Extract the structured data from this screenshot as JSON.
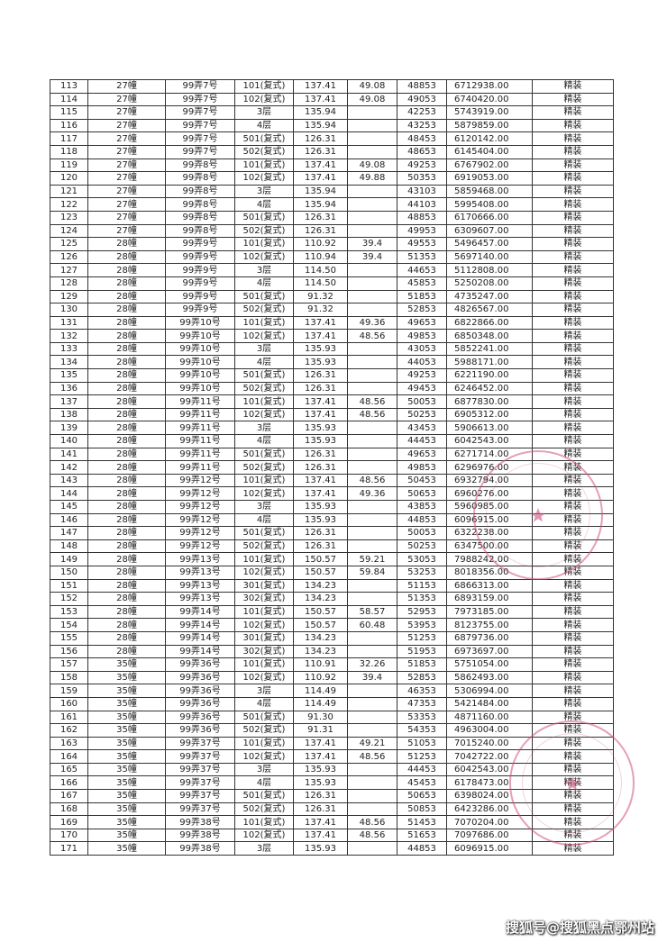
{
  "table": {
    "rows": [
      [
        "113",
        "27幢",
        "99弄7号",
        "101(复式)",
        "137.41",
        "49.08",
        "48853",
        "6712938.00",
        "精装"
      ],
      [
        "114",
        "27幢",
        "99弄7号",
        "102(复式)",
        "137.41",
        "49.08",
        "49053",
        "6740420.00",
        "精装"
      ],
      [
        "115",
        "27幢",
        "99弄7号",
        "3层",
        "135.94",
        "",
        "42253",
        "5743919.00",
        "精装"
      ],
      [
        "116",
        "27幢",
        "99弄7号",
        "4层",
        "135.94",
        "",
        "43253",
        "5879859.00",
        "精装"
      ],
      [
        "117",
        "27幢",
        "99弄7号",
        "501(复式)",
        "126.31",
        "",
        "48453",
        "6120142.00",
        "精装"
      ],
      [
        "118",
        "27幢",
        "99弄7号",
        "502(复式)",
        "126.31",
        "",
        "48653",
        "6145404.00",
        "精装"
      ],
      [
        "119",
        "27幢",
        "99弄8号",
        "101(复式)",
        "137.41",
        "49.08",
        "49253",
        "6767902.00",
        "精装"
      ],
      [
        "120",
        "27幢",
        "99弄8号",
        "102(复式)",
        "137.41",
        "49.88",
        "50353",
        "6919053.00",
        "精装"
      ],
      [
        "121",
        "27幢",
        "99弄8号",
        "3层",
        "135.94",
        "",
        "43103",
        "5859468.00",
        "精装"
      ],
      [
        "122",
        "27幢",
        "99弄8号",
        "4层",
        "135.94",
        "",
        "44103",
        "5995408.00",
        "精装"
      ],
      [
        "123",
        "27幢",
        "99弄8号",
        "501(复式)",
        "126.31",
        "",
        "48853",
        "6170666.00",
        "精装"
      ],
      [
        "124",
        "27幢",
        "99弄8号",
        "502(复式)",
        "126.31",
        "",
        "49953",
        "6309607.00",
        "精装"
      ],
      [
        "125",
        "28幢",
        "99弄9号",
        "101(复式)",
        "110.92",
        "39.4",
        "49553",
        "5496457.00",
        "精装"
      ],
      [
        "126",
        "28幢",
        "99弄9号",
        "102(复式)",
        "110.94",
        "39.4",
        "51353",
        "5697140.00",
        "精装"
      ],
      [
        "127",
        "28幢",
        "99弄9号",
        "3层",
        "114.50",
        "",
        "44653",
        "5112808.00",
        "精装"
      ],
      [
        "128",
        "28幢",
        "99弄9号",
        "4层",
        "114.50",
        "",
        "45853",
        "5250208.00",
        "精装"
      ],
      [
        "129",
        "28幢",
        "99弄9号",
        "501(复式)",
        "91.32",
        "",
        "51853",
        "4735247.00",
        "精装"
      ],
      [
        "130",
        "28幢",
        "99弄9号",
        "502(复式)",
        "91.32",
        "",
        "52853",
        "4826567.00",
        "精装"
      ],
      [
        "131",
        "28幢",
        "99弄10号",
        "101(复式)",
        "137.41",
        "49.36",
        "49653",
        "6822866.00",
        "精装"
      ],
      [
        "132",
        "28幢",
        "99弄10号",
        "102(复式)",
        "137.41",
        "48.56",
        "49853",
        "6850348.00",
        "精装"
      ],
      [
        "133",
        "28幢",
        "99弄10号",
        "3层",
        "135.93",
        "",
        "43053",
        "5852241.00",
        "精装"
      ],
      [
        "134",
        "28幢",
        "99弄10号",
        "4层",
        "135.93",
        "",
        "44053",
        "5988171.00",
        "精装"
      ],
      [
        "135",
        "28幢",
        "99弄10号",
        "501(复式)",
        "126.31",
        "",
        "49253",
        "6221190.00",
        "精装"
      ],
      [
        "136",
        "28幢",
        "99弄10号",
        "502(复式)",
        "126.31",
        "",
        "49453",
        "6246452.00",
        "精装"
      ],
      [
        "137",
        "28幢",
        "99弄11号",
        "101(复式)",
        "137.41",
        "48.56",
        "50053",
        "6877830.00",
        "精装"
      ],
      [
        "138",
        "28幢",
        "99弄11号",
        "102(复式)",
        "137.41",
        "48.56",
        "50253",
        "6905312.00",
        "精装"
      ],
      [
        "139",
        "28幢",
        "99弄11号",
        "3层",
        "135.93",
        "",
        "43453",
        "5906613.00",
        "精装"
      ],
      [
        "140",
        "28幢",
        "99弄11号",
        "4层",
        "135.93",
        "",
        "44453",
        "6042543.00",
        "精装"
      ],
      [
        "141",
        "28幢",
        "99弄11号",
        "501(复式)",
        "126.31",
        "",
        "49653",
        "6271714.00",
        "精装"
      ],
      [
        "142",
        "28幢",
        "99弄11号",
        "502(复式)",
        "126.31",
        "",
        "49853",
        "6296976.00",
        "精装"
      ],
      [
        "143",
        "28幢",
        "99弄12号",
        "101(复式)",
        "137.41",
        "48.56",
        "50453",
        "6932794.00",
        "精装"
      ],
      [
        "144",
        "28幢",
        "99弄12号",
        "102(复式)",
        "137.41",
        "49.36",
        "50653",
        "6960276.00",
        "精装"
      ],
      [
        "145",
        "28幢",
        "99弄12号",
        "3层",
        "135.93",
        "",
        "43853",
        "5960985.00",
        "精装"
      ],
      [
        "146",
        "28幢",
        "99弄12号",
        "4层",
        "135.93",
        "",
        "44853",
        "6096915.00",
        "精装"
      ],
      [
        "147",
        "28幢",
        "99弄12号",
        "501(复式)",
        "126.31",
        "",
        "50053",
        "6322238.00",
        "精装"
      ],
      [
        "148",
        "28幢",
        "99弄12号",
        "502(复式)",
        "126.31",
        "",
        "50253",
        "6347500.00",
        "精装"
      ],
      [
        "149",
        "28幢",
        "99弄13号",
        "101(复式)",
        "150.57",
        "59.21",
        "53053",
        "7988242.00",
        "精装"
      ],
      [
        "150",
        "28幢",
        "99弄13号",
        "102(复式)",
        "150.57",
        "59.84",
        "53253",
        "8018356.00",
        "精装"
      ],
      [
        "151",
        "28幢",
        "99弄13号",
        "301(复式)",
        "134.23",
        "",
        "51153",
        "6866313.00",
        "精装"
      ],
      [
        "152",
        "28幢",
        "99弄13号",
        "302(复式)",
        "134.23",
        "",
        "51353",
        "6893159.00",
        "精装"
      ],
      [
        "153",
        "28幢",
        "99弄14号",
        "101(复式)",
        "150.57",
        "58.57",
        "52953",
        "7973185.00",
        "精装"
      ],
      [
        "154",
        "28幢",
        "99弄14号",
        "102(复式)",
        "150.57",
        "60.48",
        "53953",
        "8123755.00",
        "精装"
      ],
      [
        "155",
        "28幢",
        "99弄14号",
        "301(复式)",
        "134.23",
        "",
        "51253",
        "6879736.00",
        "精装"
      ],
      [
        "156",
        "28幢",
        "99弄14号",
        "302(复式)",
        "134.23",
        "",
        "51953",
        "6973697.00",
        "精装"
      ],
      [
        "157",
        "35幢",
        "99弄36号",
        "101(复式)",
        "110.91",
        "32.26",
        "51853",
        "5751054.00",
        "精装"
      ],
      [
        "158",
        "35幢",
        "99弄36号",
        "102(复式)",
        "110.92",
        "39.4",
        "52853",
        "5862493.00",
        "精装"
      ],
      [
        "159",
        "35幢",
        "99弄36号",
        "3层",
        "114.49",
        "",
        "46353",
        "5306994.00",
        "精装"
      ],
      [
        "160",
        "35幢",
        "99弄36号",
        "4层",
        "114.49",
        "",
        "47353",
        "5421484.00",
        "精装"
      ],
      [
        "161",
        "35幢",
        "99弄36号",
        "501(复式)",
        "91.30",
        "",
        "53353",
        "4871160.00",
        "精装"
      ],
      [
        "162",
        "35幢",
        "99弄36号",
        "502(复式)",
        "91.31",
        "",
        "54353",
        "4963004.00",
        "精装"
      ],
      [
        "163",
        "35幢",
        "99弄37号",
        "101(复式)",
        "137.41",
        "49.21",
        "51053",
        "7015240.00",
        "精装"
      ],
      [
        "164",
        "35幢",
        "99弄37号",
        "102(复式)",
        "137.41",
        "48.56",
        "51253",
        "7042722.00",
        "精装"
      ],
      [
        "165",
        "35幢",
        "99弄37号",
        "3层",
        "135.93",
        "",
        "44453",
        "6042543.00",
        "精装"
      ],
      [
        "166",
        "35幢",
        "99弄37号",
        "4层",
        "135.93",
        "",
        "45453",
        "6178473.00",
        "精装"
      ],
      [
        "167",
        "35幢",
        "99弄37号",
        "501(复式)",
        "126.31",
        "",
        "50653",
        "6398024.00",
        "精装"
      ],
      [
        "168",
        "35幢",
        "99弄37号",
        "502(复式)",
        "126.31",
        "",
        "50853",
        "6423286.00",
        "精装"
      ],
      [
        "169",
        "35幢",
        "99弄38号",
        "101(复式)",
        "137.41",
        "48.56",
        "51453",
        "7070204.00",
        "精装"
      ],
      [
        "170",
        "35幢",
        "99弄38号",
        "102(复式)",
        "137.41",
        "48.56",
        "51653",
        "7097686.00",
        "精装"
      ],
      [
        "171",
        "35幢",
        "99弄38号",
        "3层",
        "135.93",
        "",
        "44853",
        "6096915.00",
        "精装"
      ]
    ]
  },
  "stamp_color": "#cd5082",
  "watermark": "搜狐号@搜狐黑点鄂州站"
}
